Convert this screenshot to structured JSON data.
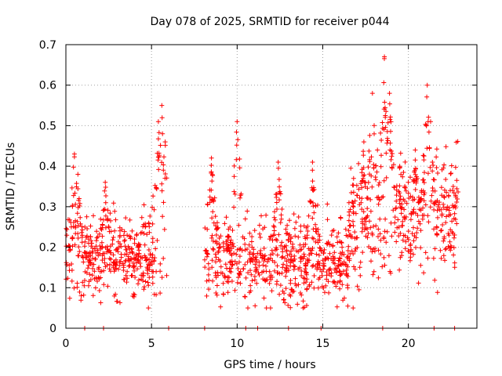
{
  "chart_data": {
    "type": "scatter",
    "title": "Day 078 of 2025, SRMTID for receiver p044",
    "xlabel": "GPS time / hours",
    "ylabel": "SRMTID / TECUs",
    "xlim": [
      0,
      24
    ],
    "ylim": [
      0,
      0.7
    ],
    "xticks": [
      0,
      5,
      10,
      15,
      20
    ],
    "yticks": [
      0,
      0.1,
      0.2,
      0.3,
      0.4,
      0.5,
      0.6,
      0.7
    ],
    "xtick_labels": [
      "0",
      "5",
      "10",
      "15",
      "20"
    ],
    "ytick_labels": [
      "0",
      "0.1",
      "0.2",
      "0.3",
      "0.4",
      "0.5",
      "0.6",
      "0.7"
    ],
    "grid": true,
    "marker": "+",
    "series_color": "#ff0000",
    "segments": [
      {
        "start": 0.0,
        "end": 5.9,
        "baseline": 0.18,
        "spread": 0.06
      },
      {
        "start": 8.1,
        "end": 16.5,
        "baseline": 0.17,
        "spread": 0.06
      },
      {
        "start": 16.5,
        "end": 22.9,
        "baseline": 0.27,
        "spread": 0.09
      }
    ],
    "peaks": [
      {
        "x": 0.5,
        "y": 0.43
      },
      {
        "x": 0.7,
        "y": 0.38
      },
      {
        "x": 2.3,
        "y": 0.36
      },
      {
        "x": 5.4,
        "y": 0.51
      },
      {
        "x": 5.6,
        "y": 0.55
      },
      {
        "x": 5.8,
        "y": 0.46
      },
      {
        "x": 8.5,
        "y": 0.42
      },
      {
        "x": 10.0,
        "y": 0.51
      },
      {
        "x": 12.4,
        "y": 0.41
      },
      {
        "x": 14.4,
        "y": 0.41
      },
      {
        "x": 17.4,
        "y": 0.46
      },
      {
        "x": 17.9,
        "y": 0.58
      },
      {
        "x": 18.6,
        "y": 0.67
      },
      {
        "x": 18.9,
        "y": 0.58
      },
      {
        "x": 20.4,
        "y": 0.44
      },
      {
        "x": 21.1,
        "y": 0.6
      },
      {
        "x": 21.3,
        "y": 0.51
      }
    ],
    "zero_marks_x": [
      1.1,
      2.2,
      6.0,
      8.1,
      10.5,
      11.2,
      13.0,
      14.9,
      18.5,
      21.5,
      22.7
    ],
    "n_points": 1600,
    "seed": 78
  }
}
